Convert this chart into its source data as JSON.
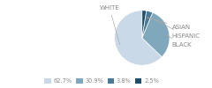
{
  "labels": [
    "WHITE",
    "BLACK",
    "HISPANIC",
    "ASIAN"
  ],
  "values": [
    62.7,
    30.9,
    3.8,
    2.5
  ],
  "colors": [
    "#c9d9e8",
    "#7fa8bc",
    "#4a7a96",
    "#1f4e6b"
  ],
  "legend_labels": [
    "62.7%",
    "30.9%",
    "3.8%",
    "2.5%"
  ],
  "legend_colors": [
    "#c9d9e8",
    "#7fa8bc",
    "#4a7a96",
    "#1f4e6b"
  ],
  "startangle": 90,
  "bg_color": "#ffffff",
  "label_fontsize": 5.0,
  "label_color": "#888888",
  "line_color": "#aaaaaa"
}
